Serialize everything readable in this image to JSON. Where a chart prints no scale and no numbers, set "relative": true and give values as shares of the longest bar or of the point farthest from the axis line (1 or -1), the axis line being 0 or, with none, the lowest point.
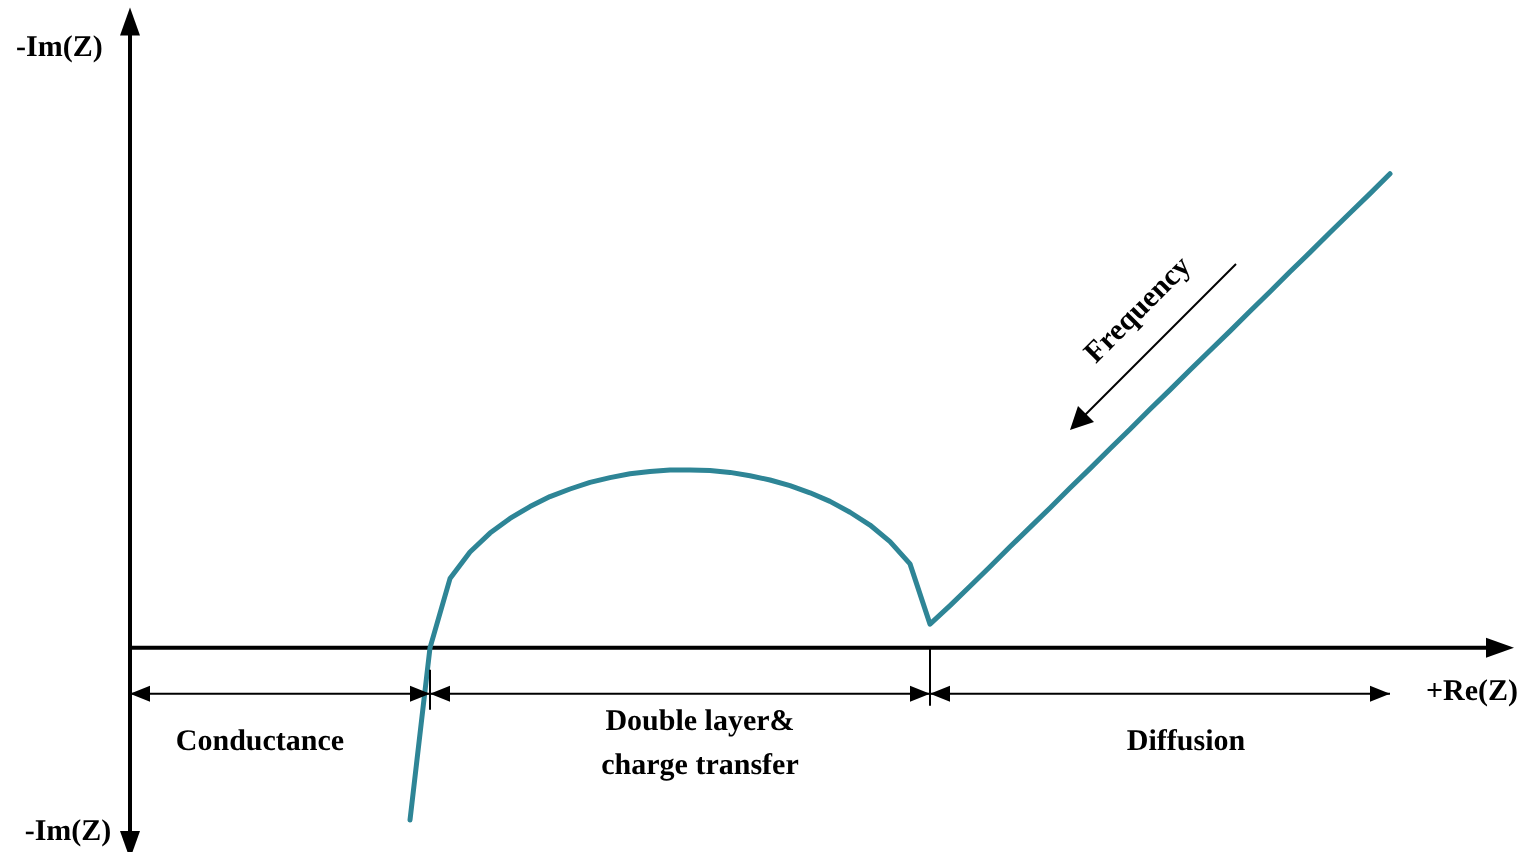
{
  "chart_data": {
    "type": "line",
    "relative": true,
    "xlabel": "+Re(Z)",
    "ylabel": "-Im(Z)",
    "annotations": [
      "Conductance",
      "Double layer&\ncharge transfer",
      "Diffusion",
      "Frequency",
      "-Im(Z)"
    ],
    "categories": [
      null,
      null,
      null,
      null,
      null,
      null,
      null,
      null,
      null,
      null,
      null,
      null,
      null,
      null,
      null,
      null,
      null,
      null,
      null,
      null,
      null,
      null,
      null,
      null,
      null,
      null,
      null,
      null,
      null,
      null,
      null,
      null,
      null,
      null,
      null,
      null,
      null,
      null,
      null,
      null,
      null,
      null,
      null,
      null,
      null,
      null,
      null,
      null,
      null,
      null,
      null,
      null,
      null,
      null,
      null,
      null,
      null,
      null,
      null,
      null,
      null,
      null,
      null,
      null,
      null,
      null,
      null,
      null,
      null
    ],
    "series": [
      {
        "color": "#2e8596",
        "values": [
          null,
          null,
          null,
          null,
          null,
          null,
          null,
          null,
          null,
          null,
          null,
          null,
          null,
          null,
          -0.363,
          0,
          0.146,
          0.202,
          0.242,
          0.273,
          0.298,
          0.319,
          0.335,
          0.349,
          0.359,
          0.367,
          0.372,
          0.375,
          0.375,
          0.374,
          0.37,
          0.363,
          0.354,
          0.342,
          0.327,
          0.309,
          0.286,
          0.259,
          0.224,
          0.177,
          0.05,
          0.089,
          0.13,
          0.171,
          0.213,
          0.254,
          0.295,
          0.337,
          0.378,
          0.42,
          0.461,
          0.503,
          0.544,
          0.586,
          0.627,
          0.668,
          0.71,
          0.751,
          0.793,
          0.834,
          0.876,
          0.917,
          0.958,
          1.0,
          null,
          null,
          null,
          null,
          null
        ]
      }
    ],
    "marker": "none",
    "line_style": "solid",
    "tick_labels": false
  }
}
